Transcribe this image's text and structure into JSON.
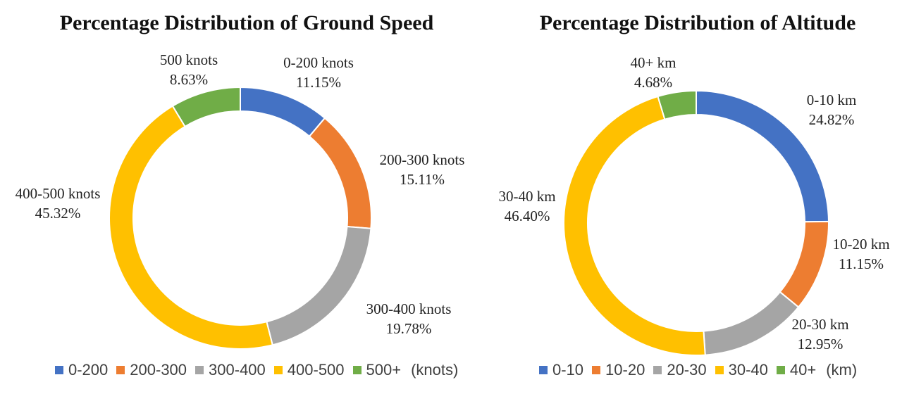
{
  "chart_data": [
    {
      "type": "pie",
      "variant": "donut",
      "title": "Percentage Distribution of Ground Speed",
      "unit_label": "(knots)",
      "categories": [
        "0-200",
        "200-300",
        "300-400",
        "400-500",
        "500+"
      ],
      "values": [
        11.15,
        15.11,
        19.78,
        45.32,
        8.63
      ],
      "slice_labels": [
        "0-200 knots",
        "200-300 knots",
        "300-400 knots",
        "400-500 knots",
        "500 knots"
      ],
      "value_labels": [
        "11.15%",
        "15.11%",
        "19.78%",
        "45.32%",
        "8.63%"
      ],
      "colors": [
        "#4472C4",
        "#ED7D31",
        "#A5A5A5",
        "#FFC000",
        "#70AD47"
      ],
      "legend_position": "bottom"
    },
    {
      "type": "pie",
      "variant": "donut",
      "title": "Percentage Distribution of Altitude",
      "unit_label": "(km)",
      "categories": [
        "0-10",
        "10-20",
        "20-30",
        "30-40",
        "40+"
      ],
      "values": [
        24.82,
        11.15,
        12.95,
        46.4,
        4.68
      ],
      "slice_labels": [
        "0-10 km",
        "10-20 km",
        "20-30 km",
        "30-40 km",
        "40+ km"
      ],
      "value_labels": [
        "24.82%",
        "11.15%",
        "12.95%",
        "46.40%",
        "4.68%"
      ],
      "colors": [
        "#4472C4",
        "#ED7D31",
        "#A5A5A5",
        "#FFC000",
        "#70AD47"
      ],
      "legend_position": "bottom"
    }
  ]
}
